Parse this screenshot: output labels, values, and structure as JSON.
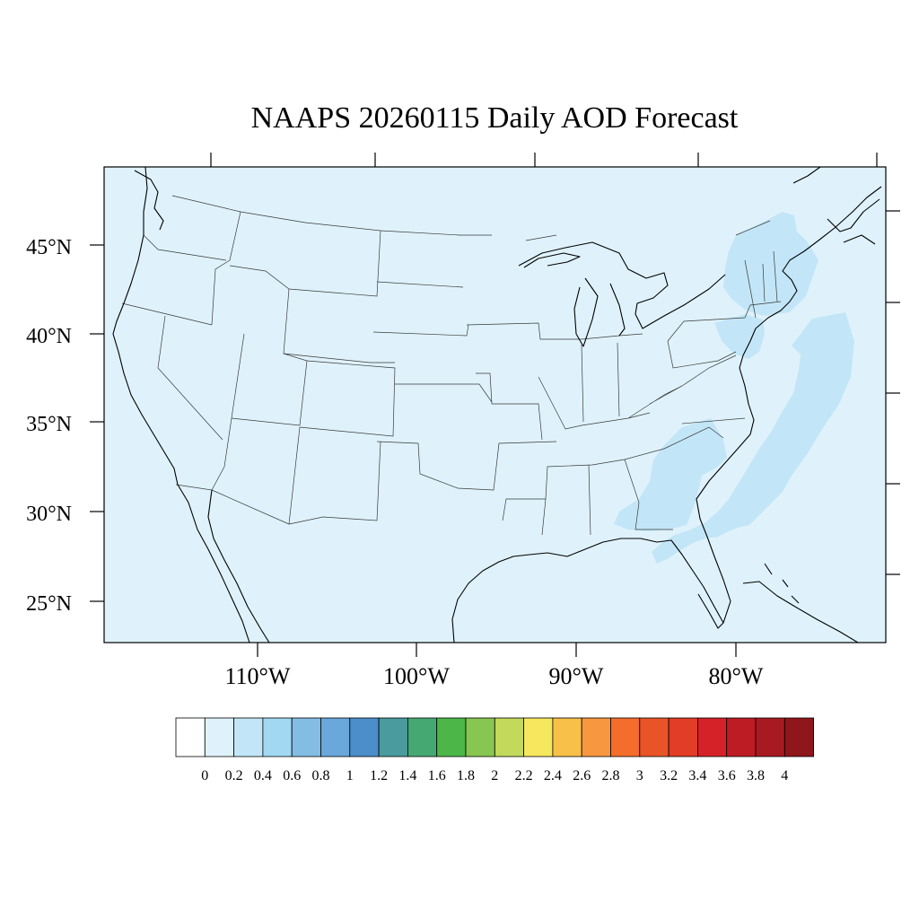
{
  "title": "NAAPS 20260115 Daily AOD Forecast",
  "map": {
    "background_color": "#dff2fb",
    "plume_color": "#c2e6f7",
    "latitude_labels": [
      "45°N",
      "40°N",
      "35°N",
      "30°N",
      "25°N"
    ],
    "longitude_labels": [
      "110°W",
      "100°W",
      "90°W",
      "80°W"
    ]
  },
  "colorbar": {
    "colors": [
      "#ffffff",
      "#dff2fb",
      "#c2e6f7",
      "#a2d8f2",
      "#84bde4",
      "#6aa7da",
      "#4b8ec9",
      "#4a9b9d",
      "#45a872",
      "#4cb748",
      "#87c650",
      "#c3d95b",
      "#f7e75e",
      "#f8c049",
      "#f7973f",
      "#f46d2c",
      "#e85427",
      "#e23d26",
      "#d52128",
      "#bd1c25",
      "#a81a22",
      "#8f161b"
    ],
    "labels": [
      "0",
      "0.2",
      "0.4",
      "0.6",
      "0.8",
      "1",
      "1.2",
      "1.4",
      "1.6",
      "1.8",
      "2",
      "2.2",
      "2.4",
      "2.6",
      "2.8",
      "3",
      "3.2",
      "3.4",
      "3.6",
      "3.8",
      "4"
    ]
  }
}
